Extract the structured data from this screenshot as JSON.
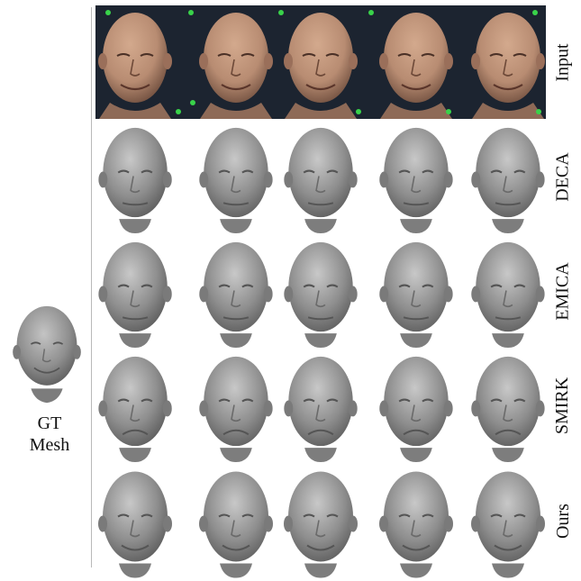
{
  "gt_label_line1": "GT",
  "gt_label_line2": "Mesh",
  "rows": [
    {
      "label": "Input",
      "kind": "photo"
    },
    {
      "label": "DECA",
      "kind": "mesh",
      "mouth": "neutral"
    },
    {
      "label": "EMICA",
      "kind": "mesh",
      "mouth": "neutral"
    },
    {
      "label": "SMIRK",
      "kind": "mesh",
      "mouth": "frown"
    },
    {
      "label": "Ours",
      "kind": "mesh",
      "mouth": "smile"
    }
  ],
  "views": [
    "left-three-quarter",
    "right-three-quarter",
    "frontal",
    "right-three-quarter",
    "right-profile"
  ],
  "colors": {
    "mesh": "#8e8e8e",
    "photo_bg": "#1c2430",
    "skin": "#b88c72",
    "marker": "#39d34a"
  }
}
